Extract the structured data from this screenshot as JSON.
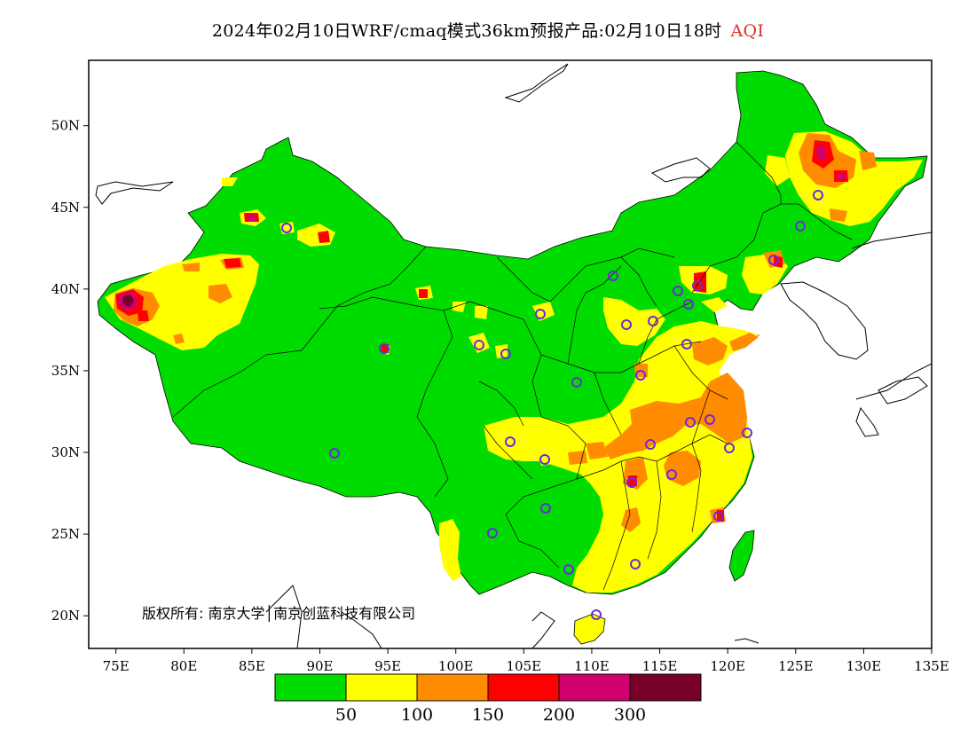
{
  "title": {
    "main": "2024年02月10日WRF/cmaq模式36km预报产品:02月10日18时",
    "variable": "AQI"
  },
  "map": {
    "lon_range": [
      73,
      135
    ],
    "lat_range": [
      18,
      54
    ],
    "lon_ticks": [
      "75E",
      "80E",
      "85E",
      "90E",
      "95E",
      "100E",
      "105E",
      "110E",
      "115E",
      "120E",
      "125E",
      "130E",
      "135E"
    ],
    "lat_ticks": [
      "20N",
      "25N",
      "30N",
      "35N",
      "40N",
      "45N",
      "50N"
    ],
    "copyright": "版权所有: 南京大学│南京创蓝科技有限公司"
  },
  "colorbar": {
    "colors": [
      "#00dc00",
      "#ffff00",
      "#ff8c00",
      "#ff0000",
      "#d2006e",
      "#780028"
    ],
    "labels": [
      "50",
      "100",
      "150",
      "200",
      "300"
    ]
  },
  "colors": {
    "good": "#00dc00",
    "moderate": "#ffff00",
    "unhealthy_sensitive": "#ff8c00",
    "unhealthy": "#ff0000",
    "very_unhealthy": "#d2006e",
    "hazardous": "#780028",
    "station_marker": "#6a2cd8"
  }
}
